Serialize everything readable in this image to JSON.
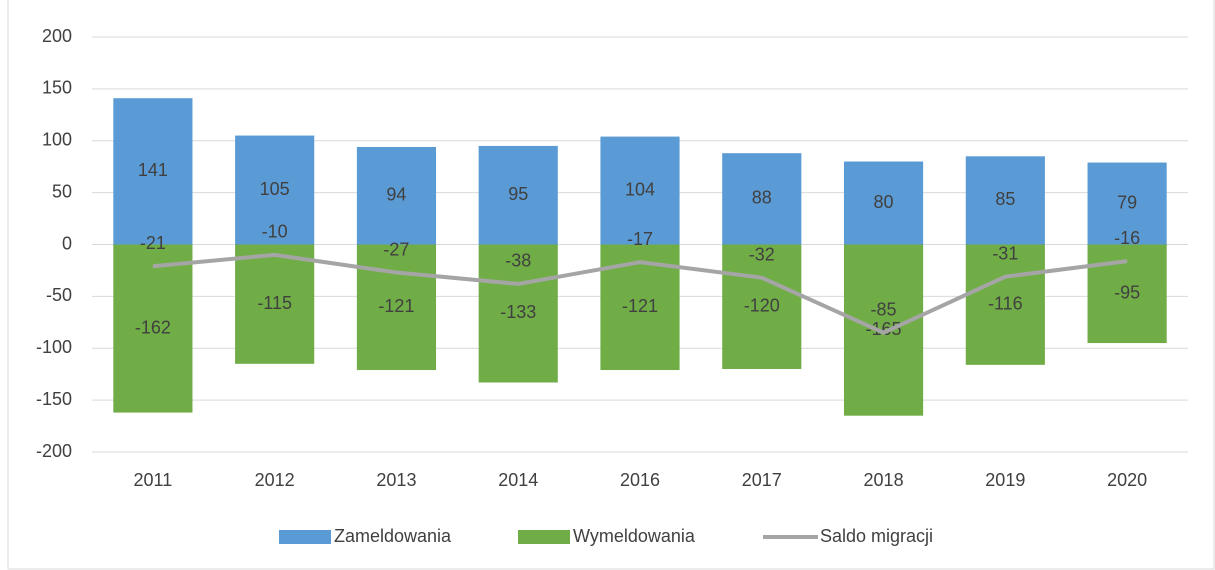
{
  "chart_data": {
    "type": "bar",
    "categories": [
      "2011",
      "2012",
      "2013",
      "2014",
      "2016",
      "2017",
      "2018",
      "2019",
      "2020"
    ],
    "series": [
      {
        "name": "Zameldowania",
        "color": "#5b9bd5",
        "type": "bar",
        "values": [
          141,
          105,
          94,
          95,
          104,
          88,
          80,
          85,
          79
        ]
      },
      {
        "name": "Wymeldowania",
        "color": "#70ad47",
        "type": "bar",
        "values": [
          -162,
          -115,
          -121,
          -133,
          -121,
          -120,
          -165,
          -116,
          -95
        ]
      },
      {
        "name": "Saldo migracji",
        "color": "#a5a5a5",
        "type": "line",
        "values": [
          -21,
          -10,
          -27,
          -38,
          -17,
          -32,
          -85,
          -31,
          -16
        ]
      }
    ],
    "ylim": [
      -200,
      200
    ],
    "yticks": [
      -200,
      -150,
      -100,
      -50,
      0,
      50,
      100,
      150,
      200
    ],
    "grid": true,
    "legend": "bottom"
  }
}
